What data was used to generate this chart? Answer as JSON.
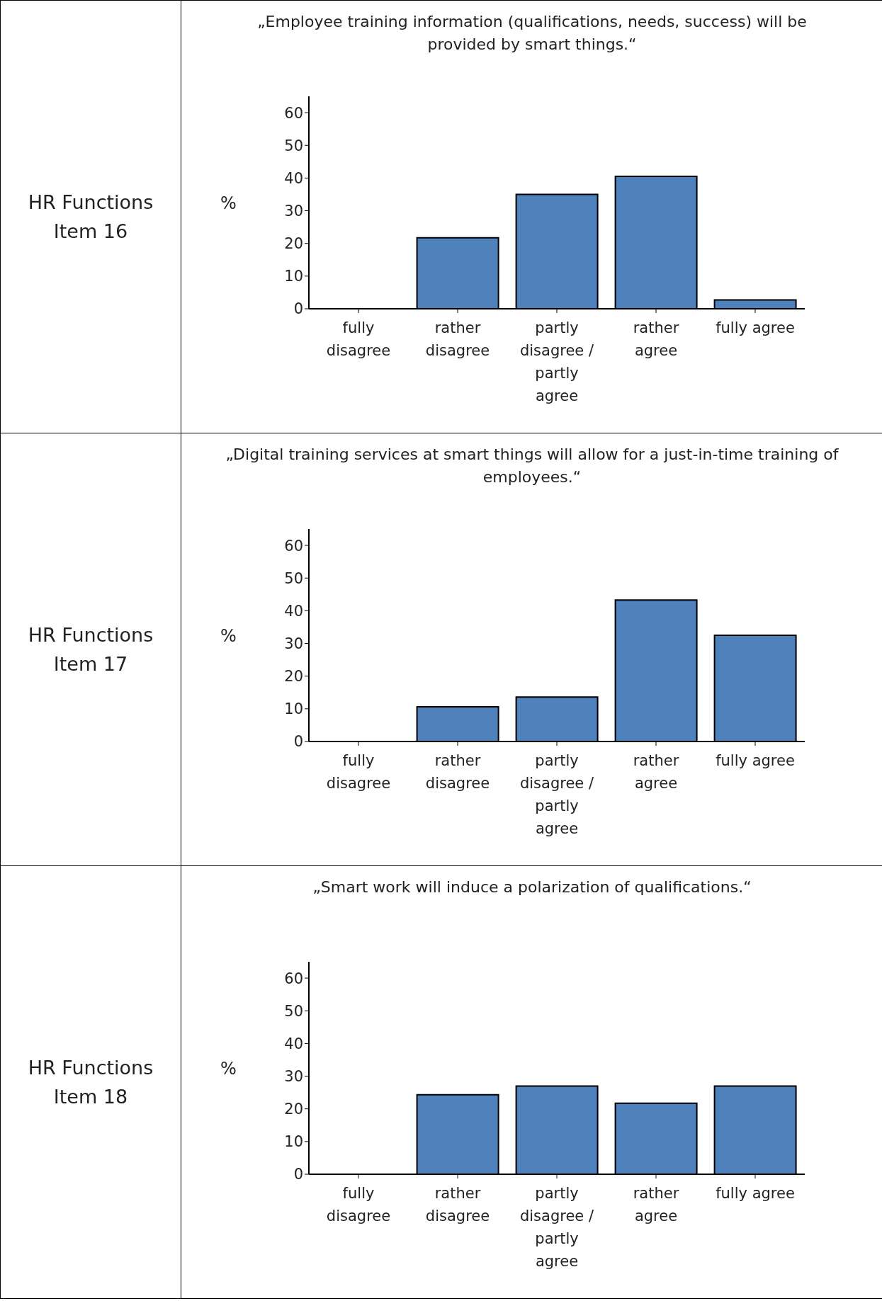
{
  "chart_data": [
    {
      "type": "bar",
      "title": "„Employee training information (qualifications, needs, success) will be provided by smart things.“",
      "ylabel": "%",
      "annotations": [
        "HR Functions Item 16"
      ],
      "categories": [
        "fully disagree",
        "rather disagree",
        "partly disagree / partly agree",
        "rather agree",
        "fully agree"
      ],
      "values": [
        0,
        21.7,
        35,
        40.5,
        2.7
      ],
      "color": "#4f81bd",
      "ylim": [
        0,
        65
      ],
      "yticks": [
        0,
        10,
        20,
        30,
        40,
        50,
        60
      ],
      "grid": false,
      "legend": false
    },
    {
      "type": "bar",
      "title": "„Digital training services at smart things will allow for a just-in-time training of employees.“",
      "ylabel": "%",
      "annotations": [
        "HR Functions Item 17"
      ],
      "categories": [
        "fully disagree",
        "rather disagree",
        "partly disagree / partly agree",
        "rather agree",
        "fully agree"
      ],
      "values": [
        0,
        10.6,
        13.6,
        43.3,
        32.5
      ],
      "color": "#4f81bd",
      "ylim": [
        0,
        65
      ],
      "yticks": [
        0,
        10,
        20,
        30,
        40,
        50,
        60
      ],
      "grid": false,
      "legend": false
    },
    {
      "type": "bar",
      "title": "„Smart work will induce a polarization of qualifications.“",
      "ylabel": "%",
      "annotations": [
        "HR Functions Item 18"
      ],
      "categories": [
        "fully disagree",
        "rather disagree",
        "partly disagree / partly agree",
        "rather agree",
        "fully agree"
      ],
      "values": [
        0,
        24.3,
        27,
        21.7,
        27
      ],
      "color": "#4f81bd",
      "ylim": [
        0,
        65
      ],
      "yticks": [
        0,
        10,
        20,
        30,
        40,
        50,
        60
      ],
      "grid": false,
      "legend": false
    }
  ]
}
